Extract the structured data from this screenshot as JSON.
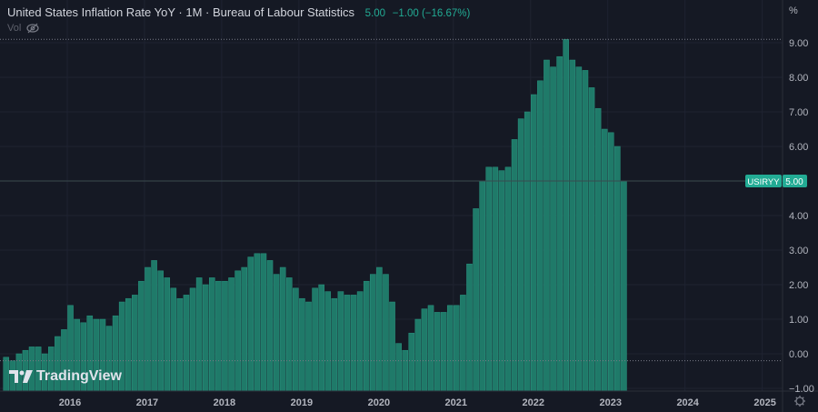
{
  "header": {
    "title": "United States Inflation Rate YoY · 1M · Bureau of Labour Statistics",
    "last": "5.00",
    "change": "−1.00 (−16.67%)",
    "vol_label": "Vol",
    "vol_icon": "eye-hidden-icon"
  },
  "axis": {
    "unit": "%",
    "ticker": "USIRYY",
    "ticker_value": "5.00",
    "settings_icon": "gear-icon"
  },
  "logo": {
    "text": "TradingView"
  },
  "colors": {
    "bar": "#1f7a69",
    "bar_edge": "#2a9580",
    "bg": "#151924",
    "grid": "#1f2331",
    "label_bg": "#22ab94"
  },
  "chart_data": {
    "type": "bar",
    "title": "United States Inflation Rate YoY",
    "start": "2015-03",
    "interval": "1M",
    "values": [
      -0.1,
      -0.2,
      0.0,
      0.1,
      0.2,
      0.2,
      0.0,
      0.2,
      0.5,
      0.7,
      1.4,
      1.0,
      0.9,
      1.1,
      1.0,
      1.0,
      0.8,
      1.1,
      1.5,
      1.6,
      1.7,
      2.1,
      2.5,
      2.7,
      2.4,
      2.2,
      1.9,
      1.6,
      1.7,
      1.9,
      2.2,
      2.0,
      2.2,
      2.1,
      2.1,
      2.2,
      2.4,
      2.5,
      2.8,
      2.9,
      2.9,
      2.7,
      2.3,
      2.5,
      2.2,
      1.9,
      1.6,
      1.5,
      1.9,
      2.0,
      1.8,
      1.6,
      1.8,
      1.7,
      1.7,
      1.8,
      2.1,
      2.3,
      2.5,
      2.3,
      1.5,
      0.3,
      0.1,
      0.6,
      1.0,
      1.3,
      1.4,
      1.2,
      1.2,
      1.4,
      1.4,
      1.7,
      2.6,
      4.2,
      5.0,
      5.4,
      5.4,
      5.3,
      5.4,
      6.2,
      6.8,
      7.0,
      7.5,
      7.9,
      8.5,
      8.3,
      8.6,
      9.1,
      8.5,
      8.3,
      8.2,
      7.7,
      7.1,
      6.5,
      6.4,
      6.0,
      5.0
    ],
    "x_ticks": [
      "2016",
      "2017",
      "2018",
      "2019",
      "2020",
      "2021",
      "2022",
      "2023",
      "2024",
      "2025"
    ],
    "y_ticks": [
      "9.00",
      "8.00",
      "7.00",
      "6.00",
      "5.00",
      "4.00",
      "3.00",
      "2.00",
      "1.00",
      "0.00",
      "−1.00"
    ],
    "y_tick_values": [
      9,
      8,
      7,
      6,
      5,
      4,
      3,
      2,
      1,
      0,
      -1
    ],
    "ylim": [
      -1.1,
      10.2
    ],
    "high": 9.1,
    "low": -0.2,
    "last": 5.0
  }
}
